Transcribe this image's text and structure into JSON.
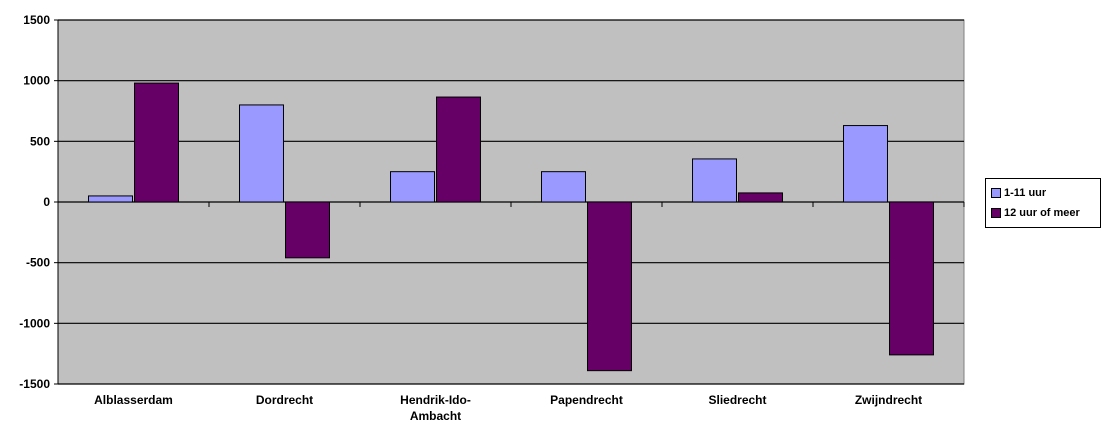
{
  "chart_data": {
    "type": "bar",
    "categories": [
      "Alblasserdam",
      "Dordrecht",
      "Hendrik-Ido-Ambacht",
      "Papendrecht",
      "Sliedrecht",
      "Zwijndrecht"
    ],
    "category_label_lines": [
      [
        "Alblasserdam"
      ],
      [
        "Dordrecht"
      ],
      [
        "Hendrik-Ido-",
        "Ambacht"
      ],
      [
        "Papendrecht"
      ],
      [
        "Sliedrecht"
      ],
      [
        "Zwijndrecht"
      ]
    ],
    "series": [
      {
        "name": "1-11 uur",
        "values": [
          50,
          800,
          250,
          250,
          355,
          630
        ],
        "color": "#9999ff"
      },
      {
        "name": "12 uur of meer",
        "values": [
          980,
          -460,
          865,
          -1390,
          75,
          -1260
        ],
        "color": "#660066"
      }
    ],
    "ylim": [
      -1500,
      1500
    ],
    "yticks": [
      -1500,
      -1000,
      -500,
      0,
      500,
      1000,
      1500
    ],
    "ytick_labels": [
      "-1500",
      "-1000",
      "-500",
      "0",
      "500",
      "1000",
      "1500"
    ],
    "grid": true,
    "plot_background": "#c0c0c0",
    "legend_position": "right",
    "xlabel": "",
    "ylabel": ""
  },
  "legend": {
    "items": [
      {
        "label": "1-11 uur",
        "color": "#9999ff"
      },
      {
        "label": "12 uur of meer",
        "color": "#660066"
      }
    ]
  }
}
